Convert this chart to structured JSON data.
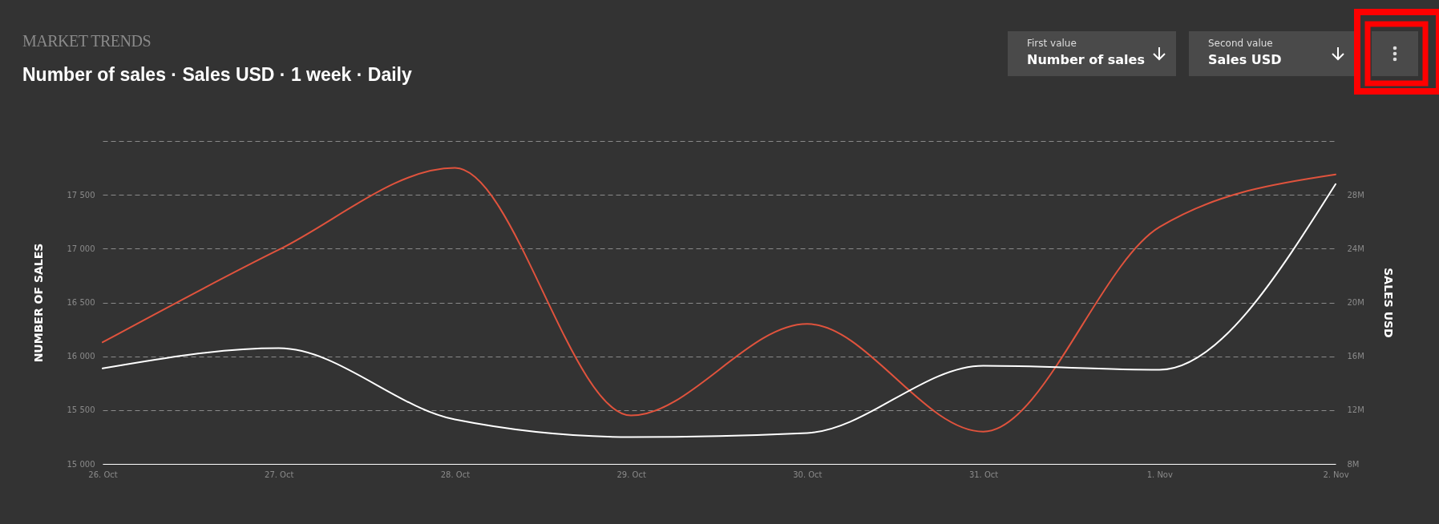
{
  "chart_data": {
    "type": "line",
    "title": "MARKET TRENDS",
    "subtitle": "Number of sales · Sales USD · 1 week · Daily",
    "ylabel": "NUMBER OF SALES",
    "y2label": "SALES USD",
    "categories": [
      "26. Oct",
      "27. Oct",
      "28. Oct",
      "29. Oct",
      "30. Oct",
      "31. Oct",
      "1. Nov",
      "2. Nov"
    ],
    "series": [
      {
        "color": "#e0533d",
        "values": [
          16130,
          16990,
          17750,
          15450,
          16300,
          15300,
          17200,
          17690
        ]
      },
      {
        "color": "#ffffff",
        "axis": "y2",
        "values": [
          15.1,
          16.6,
          11.3,
          10.0,
          10.3,
          15.3,
          15.0,
          28.8
        ]
      }
    ],
    "ylim": [
      15000,
      18000
    ],
    "yticks": [
      {
        "value": 15000,
        "label": "15 000"
      },
      {
        "value": 15500,
        "label": "15 500"
      },
      {
        "value": 16000,
        "label": "16 000"
      },
      {
        "value": 16500,
        "label": "16 500"
      },
      {
        "value": 17000,
        "label": "17 000"
      },
      {
        "value": 17500,
        "label": "17 500"
      },
      {
        "value": 18000,
        "label": null
      }
    ],
    "y2lim": [
      8,
      32
    ],
    "y2ticks": [
      {
        "value": 8,
        "label": "8M"
      },
      {
        "value": 12,
        "label": "12M"
      },
      {
        "value": 16,
        "label": "16M"
      },
      {
        "value": 20,
        "label": "20M"
      },
      {
        "value": 24,
        "label": "24M"
      },
      {
        "value": 28,
        "label": "28M"
      },
      {
        "value": 32,
        "label": null
      }
    ],
    "grid": "y",
    "line_style": "solid",
    "marker": "none",
    "annotations": [
      "First value",
      "Number of sales",
      "Second value",
      "Sales USD"
    ]
  }
}
